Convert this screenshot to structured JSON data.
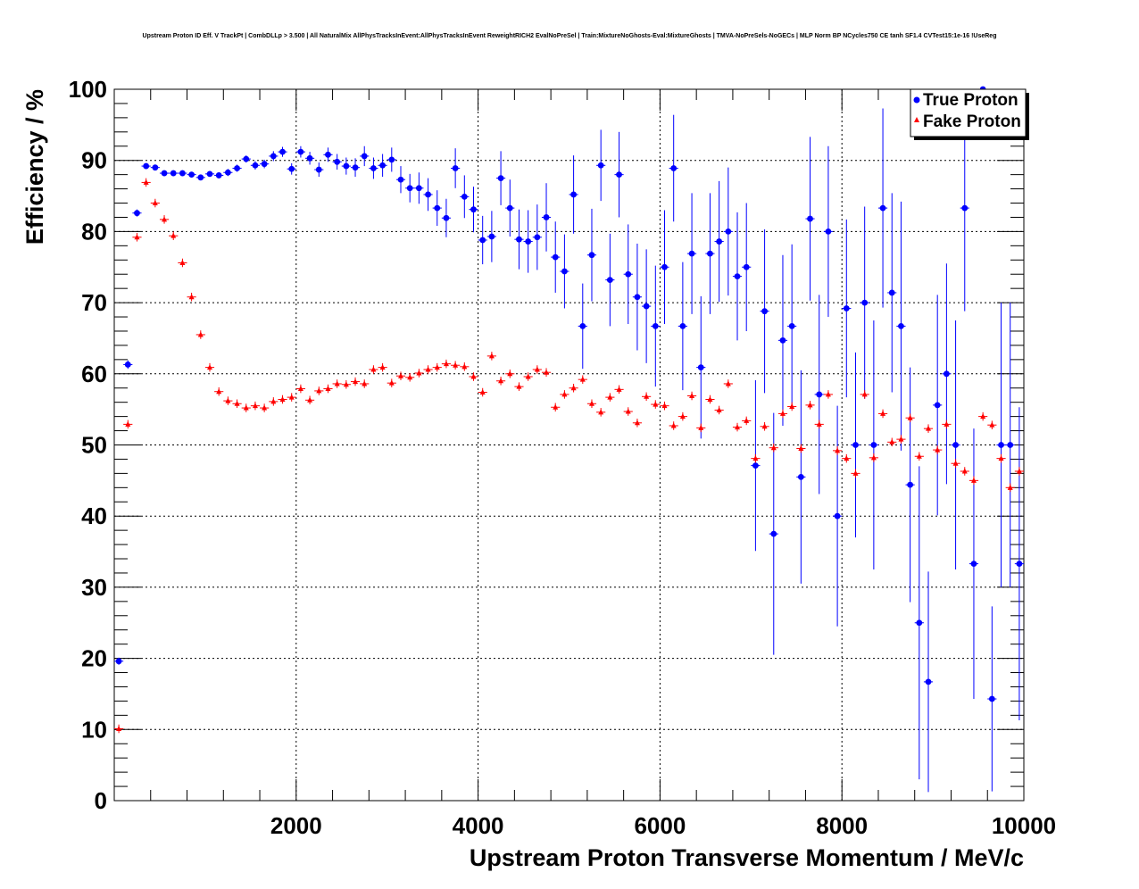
{
  "chart_data": {
    "type": "scatter",
    "title": "Upstream Proton ID Eff. V TrackPt | CombDLLp > 3.500 | All NaturalMix AllPhysTracksInEvent:AllPhysTracksInEvent ReweightRICH2 EvalNoPreSel | Train:MixtureNoGhosts-Eval:MixtureGhosts | TMVA-NoPreSels-NoGECs | MLP Norm BP NCycles750 CE tanh SF1.4 CVTest15:1e-16 !UseReg",
    "xlabel": "Upstream Proton Transverse Momentum / MeV/c",
    "ylabel": "Efficiency / %",
    "xlim": [
      0,
      10000
    ],
    "ylim": [
      0,
      100
    ],
    "x_ticks": [
      "2000",
      "4000",
      "6000",
      "8000",
      "10000"
    ],
    "y_ticks": [
      "0",
      "10",
      "20",
      "30",
      "40",
      "50",
      "60",
      "70",
      "80",
      "90",
      "100"
    ],
    "grid": true,
    "legend_position": "top-right",
    "series": [
      {
        "name": "True Proton",
        "color": "#0000ff",
        "marker": "circle",
        "x": [
          50,
          150,
          250,
          350,
          450,
          550,
          650,
          750,
          850,
          950,
          1050,
          1150,
          1250,
          1350,
          1450,
          1550,
          1650,
          1750,
          1850,
          1950,
          2050,
          2150,
          2250,
          2350,
          2450,
          2550,
          2650,
          2750,
          2850,
          2950,
          3050,
          3150,
          3250,
          3350,
          3450,
          3550,
          3650,
          3750,
          3850,
          3950,
          4050,
          4150,
          4250,
          4350,
          4450,
          4550,
          4650,
          4750,
          4850,
          4950,
          5050,
          5150,
          5250,
          5350,
          5450,
          5550,
          5650,
          5750,
          5850,
          5950,
          6050,
          6150,
          6250,
          6350,
          6450,
          6550,
          6650,
          6750,
          6850,
          6950,
          7050,
          7150,
          7250,
          7350,
          7450,
          7550,
          7650,
          7750,
          7850,
          7950,
          8050,
          8150,
          8250,
          8350,
          8450,
          8550,
          8650,
          8750,
          8850,
          8950,
          9050,
          9150,
          9250,
          9350,
          9450,
          9550,
          9650,
          9750,
          9850,
          9950
        ],
        "y": [
          19.6,
          61.3,
          82.6,
          89.2,
          89.0,
          88.2,
          88.2,
          88.2,
          88.0,
          87.6,
          88.1,
          87.9,
          88.3,
          88.9,
          90.2,
          89.3,
          89.5,
          90.6,
          91.2,
          88.8,
          91.2,
          90.3,
          88.7,
          90.8,
          89.8,
          89.2,
          89.0,
          90.6,
          88.9,
          89.3,
          90.1,
          87.3,
          86.1,
          86.1,
          85.2,
          83.3,
          81.9,
          88.9,
          84.9,
          83.1,
          78.8,
          79.3,
          87.5,
          83.3,
          78.9,
          78.6,
          79.2,
          82.0,
          76.4,
          74.4,
          85.2,
          66.7,
          76.7,
          89.3,
          73.2,
          88.0,
          74.0,
          70.8,
          69.5,
          66.7,
          75.0,
          88.9,
          66.7,
          76.9,
          60.9,
          76.9,
          78.6,
          80.0,
          73.7,
          75.0,
          47.1,
          68.8,
          37.5,
          64.7,
          66.7,
          45.5,
          81.8,
          57.1,
          80.0,
          40.0,
          69.2,
          50.0,
          70.0,
          50.0,
          83.3,
          71.4,
          66.7,
          44.4,
          25.0,
          16.7,
          55.6,
          60.0,
          50.0,
          83.3,
          33.3,
          100.0,
          14.3,
          50.0,
          50.0,
          33.3
        ],
        "yerr": [
          0.5,
          0.6,
          0.5,
          0.4,
          0.4,
          0.4,
          0.4,
          0.4,
          0.4,
          0.4,
          0.4,
          0.4,
          0.5,
          0.5,
          0.5,
          0.6,
          0.6,
          0.7,
          0.7,
          0.8,
          0.8,
          0.9,
          1.0,
          1.0,
          1.1,
          1.2,
          1.3,
          1.4,
          1.5,
          1.6,
          1.7,
          1.9,
          2.0,
          2.2,
          2.3,
          2.5,
          2.7,
          2.8,
          3.0,
          3.2,
          3.4,
          3.6,
          3.8,
          4.0,
          4.2,
          4.4,
          4.6,
          4.8,
          5.0,
          5.2,
          5.5,
          6.0,
          6.5,
          5.0,
          6.5,
          6.0,
          7.0,
          7.5,
          8.0,
          8.5,
          8.0,
          7.5,
          9.0,
          8.5,
          10.0,
          8.5,
          8.5,
          9.0,
          9.0,
          9.0,
          12.0,
          11.5,
          17.0,
          12.0,
          11.5,
          15.0,
          11.5,
          14.0,
          12.0,
          15.5,
          12.5,
          13.0,
          13.5,
          17.5,
          14.0,
          14.0,
          17.5,
          16.5,
          22.0,
          15.5,
          15.5,
          15.5,
          17.5,
          14.5,
          19.0,
          5.0,
          13.0,
          20.0,
          20.0,
          22.0
        ]
      },
      {
        "name": "Fake Proton",
        "color": "#ff0000",
        "marker": "triangle",
        "x": [
          50,
          150,
          250,
          350,
          450,
          550,
          650,
          750,
          850,
          950,
          1050,
          1150,
          1250,
          1350,
          1450,
          1550,
          1650,
          1750,
          1850,
          1950,
          2050,
          2150,
          2250,
          2350,
          2450,
          2550,
          2650,
          2750,
          2850,
          2950,
          3050,
          3150,
          3250,
          3350,
          3450,
          3550,
          3650,
          3750,
          3850,
          3950,
          4050,
          4150,
          4250,
          4350,
          4450,
          4550,
          4650,
          4750,
          4850,
          4950,
          5050,
          5150,
          5250,
          5350,
          5450,
          5550,
          5650,
          5750,
          5850,
          5950,
          6050,
          6150,
          6250,
          6350,
          6450,
          6550,
          6650,
          6750,
          6850,
          6950,
          7050,
          7150,
          7250,
          7350,
          7450,
          7550,
          7650,
          7750,
          7850,
          7950,
          8050,
          8150,
          8250,
          8350,
          8450,
          8550,
          8650,
          8750,
          8850,
          8950,
          9050,
          9150,
          9250,
          9350,
          9450,
          9550,
          9650,
          9750,
          9850,
          9950
        ],
        "y": [
          10.1,
          52.9,
          79.2,
          86.9,
          84.0,
          81.7,
          79.4,
          75.6,
          70.8,
          65.5,
          60.9,
          57.5,
          56.2,
          55.8,
          55.2,
          55.5,
          55.2,
          56.1,
          56.4,
          56.7,
          57.9,
          56.3,
          57.6,
          57.9,
          58.6,
          58.5,
          58.9,
          58.6,
          60.6,
          60.9,
          58.7,
          59.7,
          59.5,
          60.1,
          60.6,
          60.9,
          61.4,
          61.2,
          61.0,
          59.6,
          57.4,
          62.5,
          59.0,
          60.0,
          58.2,
          59.6,
          60.6,
          60.2,
          55.3,
          57.1,
          58.0,
          59.2,
          55.8,
          54.6,
          56.7,
          57.8,
          54.7,
          53.1,
          56.8,
          55.7,
          55.5,
          52.7,
          54.0,
          56.9,
          52.4,
          56.4,
          54.9,
          58.6,
          52.5,
          53.4,
          48.1,
          52.6,
          49.6,
          54.4,
          55.4,
          49.5,
          55.6,
          52.9,
          57.1,
          49.2,
          48.1,
          46.0,
          57.1,
          48.2,
          54.4,
          50.4,
          50.8,
          53.8,
          48.4,
          52.3,
          49.3,
          52.9,
          47.4,
          46.3,
          45.0,
          54.0,
          52.8,
          48.1,
          44.0,
          46.3
        ]
      }
    ]
  }
}
